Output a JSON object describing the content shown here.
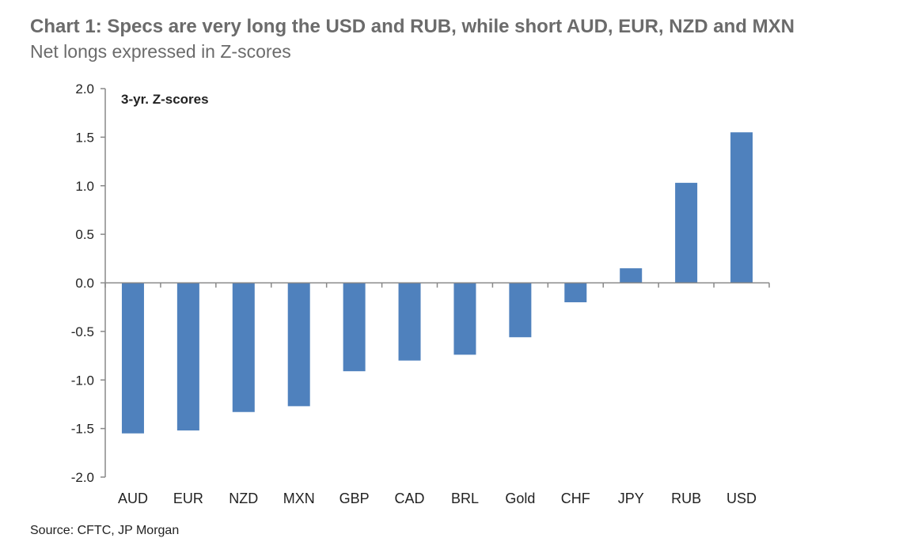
{
  "header": {
    "title": "Chart 1: Specs are very long the USD and RUB, while short AUD, EUR, NZD and MXN",
    "subtitle": "Net longs expressed in Z-scores"
  },
  "footer": {
    "source": "Source: CFTC, JP Morgan"
  },
  "colors": {
    "bar": "#4f81bd",
    "axis": "#888888",
    "text": "#6b6b6b"
  },
  "chart_data": {
    "type": "bar",
    "title": "Chart 1: Specs are very long the USD and RUB, while short AUD, EUR, NZD and MXN",
    "subtitle": "Net longs expressed in Z-scores",
    "annotation": "3-yr. Z-scores",
    "xlabel": "",
    "ylabel": "",
    "categories": [
      "AUD",
      "EUR",
      "NZD",
      "MXN",
      "GBP",
      "CAD",
      "BRL",
      "Gold",
      "CHF",
      "JPY",
      "RUB",
      "USD"
    ],
    "values": [
      -1.55,
      -1.52,
      -1.33,
      -1.27,
      -0.91,
      -0.8,
      -0.74,
      -0.56,
      -0.2,
      0.15,
      1.03,
      1.55
    ],
    "ylim": [
      -2.0,
      2.0
    ],
    "yticks": [
      "2.0",
      "1.5",
      "1.0",
      "0.5",
      "0.0",
      "-0.5",
      "-1.0",
      "-1.5",
      "-2.0"
    ],
    "ytick_values": [
      2.0,
      1.5,
      1.0,
      0.5,
      0.0,
      -0.5,
      -1.0,
      -1.5,
      -2.0
    ],
    "grid": false,
    "legend": "none"
  }
}
